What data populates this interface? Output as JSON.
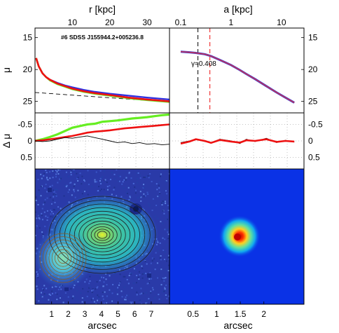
{
  "object_label": "#6 SDSS J155944.2+005236.8",
  "gamma_label": "γ=0.408",
  "axes": {
    "top_left_xlabel": "r [kpc]",
    "top_right_xlabel": "a [kpc]",
    "mu_label": "μ",
    "dmu_label": "Δ μ",
    "bottom_xlabel_left": "arcsec",
    "bottom_xlabel_right": "arcsec"
  },
  "colors": {
    "blue": "#3030e0",
    "green": "#66ee22",
    "red": "#ee1111",
    "black": "#000000",
    "purple": "#8040a0",
    "image_bg_left": "#2a3aa8",
    "image_bg_right": "#0a32e6"
  },
  "chart_data": [
    {
      "type": "line",
      "panel": "profile-r",
      "xlabel": "r [kpc]",
      "ylabel": "μ",
      "x_top_ticks": [
        "10",
        "20",
        "30"
      ],
      "x_top_tick_values": [
        10,
        20,
        30
      ],
      "xlim_kpc": [
        0,
        36
      ],
      "y_ticks": [
        "15",
        "20",
        "25"
      ],
      "y_tick_values": [
        15,
        20,
        25
      ],
      "ylim": [
        26.8,
        13.5
      ],
      "x": [
        0.3,
        1,
        2,
        3,
        4,
        6,
        8,
        10,
        13,
        16,
        20,
        25,
        30,
        36
      ],
      "series": [
        {
          "color": "blue",
          "values": [
            18.2,
            19.5,
            20.6,
            21.2,
            21.6,
            22.1,
            22.5,
            22.8,
            23.2,
            23.5,
            23.8,
            24.1,
            24.4,
            24.7
          ]
        },
        {
          "color": "green",
          "values": [
            18.2,
            19.5,
            20.6,
            21.2,
            21.7,
            22.3,
            22.7,
            23.1,
            23.5,
            23.8,
            24.1,
            24.5,
            24.8,
            25.1
          ]
        },
        {
          "color": "red",
          "values": [
            18.2,
            19.5,
            20.6,
            21.2,
            21.6,
            22.2,
            22.6,
            23.0,
            23.4,
            23.7,
            24.0,
            24.4,
            24.7,
            25.0
          ]
        }
      ],
      "dashed_line": {
        "x": [
          0,
          36
        ],
        "values": [
          23.6,
          25.1
        ]
      }
    },
    {
      "type": "line",
      "panel": "profile-a",
      "xlabel": "a [kpc]",
      "ylabel": "μ",
      "x_top_ticks": [
        "0.1",
        "1",
        "10"
      ],
      "x_top_tick_values": [
        0.1,
        1,
        10
      ],
      "xlim": [
        0.06,
        28
      ],
      "xscale": "log",
      "y_ticks": [
        "15",
        "20",
        "25"
      ],
      "y_tick_values": [
        15,
        20,
        25
      ],
      "ylim": [
        26.8,
        13.5
      ],
      "x": [
        0.1,
        0.15,
        0.2,
        0.3,
        0.4,
        0.6,
        1,
        1.5,
        2,
        3,
        5,
        8,
        12,
        18
      ],
      "series": [
        {
          "color": "blue",
          "values": [
            17.2,
            17.3,
            17.4,
            17.6,
            17.9,
            18.5,
            19.3,
            20.1,
            20.7,
            21.5,
            22.6,
            23.6,
            24.4,
            25.2
          ]
        },
        {
          "color": "red",
          "values": [
            17.2,
            17.3,
            17.4,
            17.6,
            17.9,
            18.5,
            19.3,
            20.1,
            20.7,
            21.5,
            22.6,
            23.6,
            24.4,
            25.2
          ]
        }
      ],
      "vlines": [
        {
          "x": 0.22,
          "color": "black"
        },
        {
          "x": 0.38,
          "color": "red"
        }
      ]
    },
    {
      "type": "line",
      "panel": "residual-r",
      "ylabel": "Δ μ",
      "y_ticks": [
        "-0.5",
        "0",
        "0.5"
      ],
      "y_tick_values": [
        -0.5,
        0,
        0.5
      ],
      "ylim": [
        0.85,
        -0.85
      ],
      "xlim_kpc": [
        0,
        36
      ],
      "x": [
        0,
        2,
        4,
        6,
        8,
        10,
        12,
        14,
        16,
        18,
        20,
        22,
        24,
        26,
        28,
        30,
        32,
        34,
        36
      ],
      "series": [
        {
          "color": "green",
          "values": [
            0.0,
            -0.05,
            -0.12,
            -0.2,
            -0.3,
            -0.4,
            -0.45,
            -0.5,
            -0.52,
            -0.58,
            -0.6,
            -0.62,
            -0.65,
            -0.68,
            -0.7,
            -0.72,
            -0.75,
            -0.78,
            -0.8
          ]
        },
        {
          "color": "red",
          "values": [
            0.0,
            -0.02,
            -0.05,
            -0.08,
            -0.12,
            -0.15,
            -0.2,
            -0.25,
            -0.28,
            -0.3,
            -0.32,
            -0.35,
            -0.38,
            -0.4,
            -0.42,
            -0.44,
            -0.46,
            -0.48,
            -0.5
          ]
        },
        {
          "color": "black",
          "values": [
            0.0,
            0.02,
            0.0,
            -0.05,
            -0.1,
            -0.08,
            -0.12,
            -0.15,
            -0.1,
            -0.05,
            0.0,
            0.05,
            0.03,
            0.08,
            0.05,
            0.1,
            0.08,
            0.12,
            0.1
          ]
        }
      ]
    },
    {
      "type": "line",
      "panel": "residual-a",
      "y_ticks": [
        "-0.5",
        "0",
        "0.5"
      ],
      "y_tick_values": [
        -0.5,
        0,
        0.5
      ],
      "ylim": [
        0.85,
        -0.85
      ],
      "xlim": [
        0.06,
        28
      ],
      "xscale": "log",
      "x": [
        0.1,
        0.15,
        0.2,
        0.3,
        0.4,
        0.6,
        1,
        1.5,
        2,
        3,
        5,
        8,
        12,
        18
      ],
      "series": [
        {
          "color": "black",
          "values": [
            0.05,
            0.0,
            -0.05,
            0.02,
            0.05,
            -0.05,
            0.0,
            0.08,
            -0.05,
            0.02,
            -0.08,
            0.05,
            -0.02,
            0.03
          ]
        },
        {
          "color": "red",
          "values": [
            0.08,
            0.02,
            -0.05,
            0.0,
            0.06,
            -0.03,
            0.02,
            0.05,
            -0.02,
            0.0,
            -0.05,
            0.03,
            0.0,
            0.02
          ]
        }
      ]
    },
    {
      "type": "image",
      "panel": "galaxy-image",
      "xlabel": "arcsec",
      "x_ticks": [
        "1",
        "2",
        "3",
        "4",
        "5",
        "6",
        "7"
      ],
      "x_tick_values": [
        1,
        2,
        3,
        4,
        5,
        6,
        7
      ],
      "xlim": [
        0,
        8.1
      ]
    },
    {
      "type": "image",
      "panel": "psf-image",
      "xlabel": "arcsec",
      "x_ticks": [
        "0.5",
        "1",
        "1.5",
        "2"
      ],
      "x_tick_values": [
        0.5,
        1,
        1.5,
        2
      ],
      "xlim": [
        0,
        2.85
      ]
    }
  ]
}
